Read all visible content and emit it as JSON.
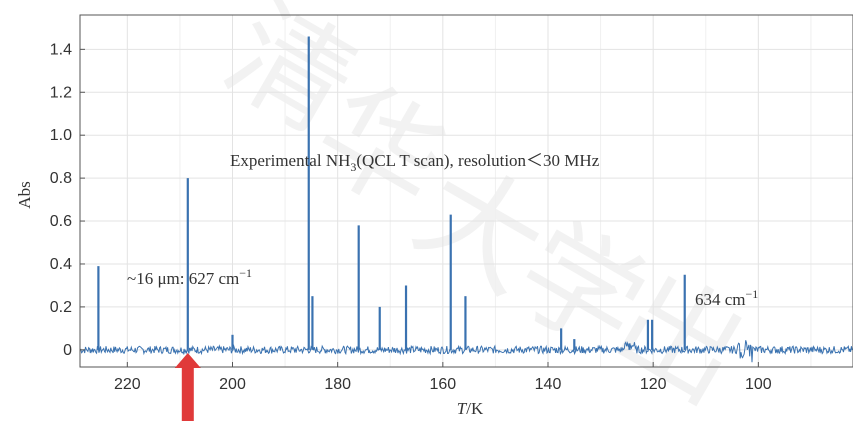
{
  "chart_data": {
    "type": "line",
    "title": "",
    "xlabel_italic": "T",
    "xlabel_rest": "/K",
    "ylabel": "Abs",
    "xlim": [
      229,
      82
    ],
    "ylim": [
      -0.08,
      1.56
    ],
    "x_ticks": [
      220,
      200,
      180,
      160,
      140,
      120,
      100
    ],
    "y_ticks": [
      {
        "value": 0,
        "label": "0"
      },
      {
        "value": 0.2,
        "label": "0.2"
      },
      {
        "value": 0.4,
        "label": "0.4"
      },
      {
        "value": 0.6,
        "label": "0.6"
      },
      {
        "value": 0.8,
        "label": "0.8"
      },
      {
        "value": 1.0,
        "label": "1.0"
      },
      {
        "value": 1.2,
        "label": "1.2"
      },
      {
        "value": 1.4,
        "label": "1.4"
      }
    ],
    "grid": true,
    "line_color": "#3a72b0",
    "arrow_color": "#e03a3a",
    "arrow_x": 208.5,
    "peaks": [
      {
        "x": 225.5,
        "y": 0.39
      },
      {
        "x": 208.5,
        "y": 0.8
      },
      {
        "x": 200.0,
        "y": 0.07
      },
      {
        "x": 185.5,
        "y": 1.46
      },
      {
        "x": 184.8,
        "y": 0.25
      },
      {
        "x": 176.0,
        "y": 0.58
      },
      {
        "x": 172.0,
        "y": 0.2
      },
      {
        "x": 167.0,
        "y": 0.3
      },
      {
        "x": 158.5,
        "y": 0.63
      },
      {
        "x": 155.7,
        "y": 0.25
      },
      {
        "x": 137.5,
        "y": 0.1
      },
      {
        "x": 135.0,
        "y": 0.05
      },
      {
        "x": 121.0,
        "y": 0.14
      },
      {
        "x": 120.2,
        "y": 0.14
      },
      {
        "x": 114.0,
        "y": 0.35
      },
      {
        "x": 124.5,
        "y": 0.03
      }
    ],
    "annotations": {
      "main_title_a": "Experimental NH",
      "main_title_sub": "3",
      "main_title_b": "(QCL T scan), resolution＜30 MHz",
      "left_label_a": "~16 μm: 627 cm",
      "left_label_sup": "−1",
      "right_label_a": "634 cm",
      "right_label_sup": "−1"
    }
  }
}
